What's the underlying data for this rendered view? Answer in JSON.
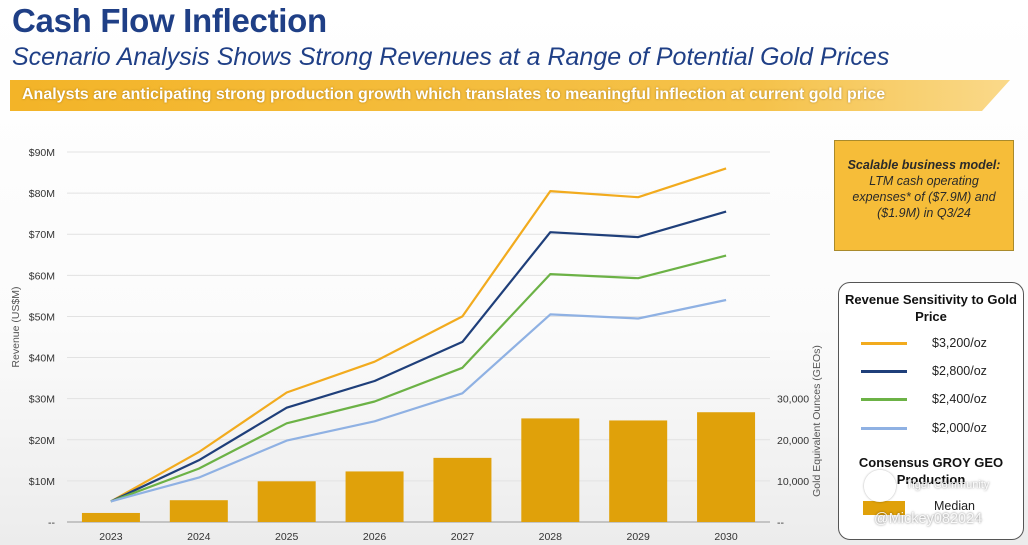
{
  "header": {
    "title": "Cash Flow Inflection",
    "subtitle": "Scenario Analysis Shows Strong Revenues at a Range of Potential Gold Prices",
    "banner": "Analysts are anticipating strong production growth which translates to meaningful inflection at current gold price"
  },
  "callout": {
    "bold": "Scalable business model:",
    "text": "LTM cash operating expenses* of ($7.9M) and ($1.9M) in Q3/24"
  },
  "legend": {
    "title": "Revenue Sensitivity to Gold Price",
    "items": [
      {
        "label": "$3,200/oz",
        "color": "#f2ab1e"
      },
      {
        "label": "$2,800/oz",
        "color": "#1f3f7a"
      },
      {
        "label": "$2,400/oz",
        "color": "#6cb246"
      },
      {
        "label": "$2,000/oz",
        "color": "#8fb1e3"
      }
    ],
    "production_title": "Consensus GROY GEO Production",
    "median_label": "Median",
    "bar_color": "#e0a10a"
  },
  "watermark": {
    "brand": "Tiger Community",
    "user": "@Mickey082024"
  },
  "chart_data": {
    "type": "bar+line",
    "categories": [
      "2023",
      "2024",
      "2025",
      "2026",
      "2027",
      "2028",
      "2029",
      "2030"
    ],
    "ylabel": "Revenue (US$M)",
    "y_ticks": [
      "--",
      "$10M",
      "$20M",
      "$30M",
      "$40M",
      "$50M",
      "$60M",
      "$70M",
      "$80M",
      "$90M"
    ],
    "ylim": [
      0,
      90
    ],
    "y2label": "Gold Equivalent Ounces (GEOs)",
    "y2_ticks": [
      "--",
      "10,000",
      "20,000",
      "30,000"
    ],
    "y2lim": [
      0,
      90000
    ],
    "series": [
      {
        "name": "$3,200/oz",
        "color": "#f2ab1e",
        "values": [
          5.0,
          17.0,
          31.5,
          39.0,
          50.0,
          80.5,
          79.0,
          86.0
        ]
      },
      {
        "name": "$2,800/oz",
        "color": "#1f3f7a",
        "values": [
          5.0,
          15.0,
          27.8,
          34.3,
          43.8,
          70.5,
          69.3,
          75.5
        ]
      },
      {
        "name": "$2,400/oz",
        "color": "#6cb246",
        "values": [
          5.0,
          13.0,
          24.0,
          29.3,
          37.5,
          60.3,
          59.3,
          64.8
        ]
      },
      {
        "name": "$2,000/oz",
        "color": "#8fb1e3",
        "values": [
          5.0,
          10.8,
          19.8,
          24.5,
          31.3,
          50.5,
          49.5,
          54.0
        ]
      }
    ],
    "bars": {
      "name": "Median",
      "color": "#e0a10a",
      "values": [
        2200,
        5300,
        9900,
        12300,
        15600,
        25200,
        24700,
        26700
      ]
    }
  }
}
